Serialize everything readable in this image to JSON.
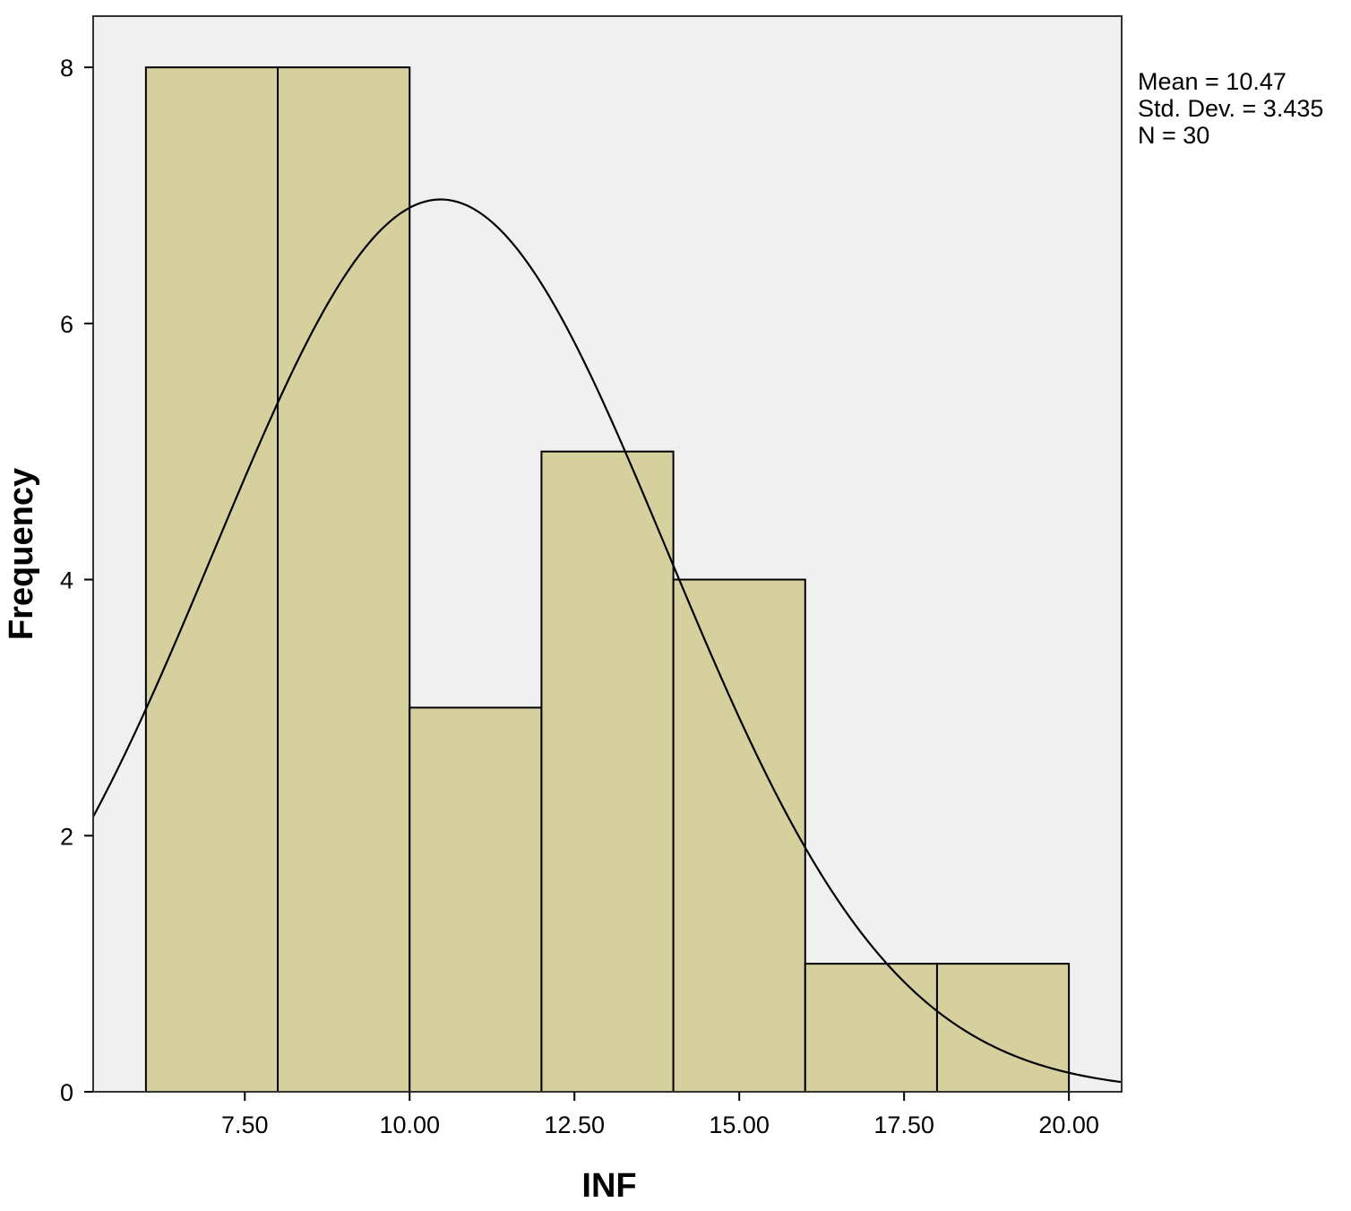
{
  "chart_data": {
    "type": "bar",
    "subtype": "histogram",
    "xlabel": "INF",
    "ylabel": "Frequency",
    "bins": [
      {
        "start": 6.0,
        "end": 8.0,
        "count": 8
      },
      {
        "start": 8.0,
        "end": 10.0,
        "count": 8
      },
      {
        "start": 10.0,
        "end": 12.0,
        "count": 3
      },
      {
        "start": 12.0,
        "end": 14.0,
        "count": 5
      },
      {
        "start": 14.0,
        "end": 16.0,
        "count": 4
      },
      {
        "start": 16.0,
        "end": 18.0,
        "count": 1
      },
      {
        "start": 18.0,
        "end": 20.0,
        "count": 1
      }
    ],
    "xlim": [
      5.2,
      20.8
    ],
    "ylim": [
      0,
      8.4
    ],
    "x_ticks": [
      {
        "value": 7.5,
        "label": "7.50"
      },
      {
        "value": 10.0,
        "label": "10.00"
      },
      {
        "value": 12.5,
        "label": "12.50"
      },
      {
        "value": 15.0,
        "label": "15.00"
      },
      {
        "value": 17.5,
        "label": "17.50"
      },
      {
        "value": 20.0,
        "label": "20.00"
      }
    ],
    "y_ticks": [
      {
        "value": 0,
        "label": "0"
      },
      {
        "value": 2,
        "label": "2"
      },
      {
        "value": 4,
        "label": "4"
      },
      {
        "value": 6,
        "label": "6"
      },
      {
        "value": 8,
        "label": "8"
      }
    ],
    "normal_curve": {
      "mean": 10.47,
      "std": 3.435,
      "n": 30,
      "bin_width": 2
    },
    "stats": [
      "Mean = 10.47",
      "Std. Dev. = 3.435",
      "N = 30"
    ],
    "grid": false,
    "colors": {
      "bar_fill": "#d5d09e",
      "bar_stroke": "#000000",
      "plot_background": "#f0f0f0",
      "curve": "#000000"
    }
  }
}
